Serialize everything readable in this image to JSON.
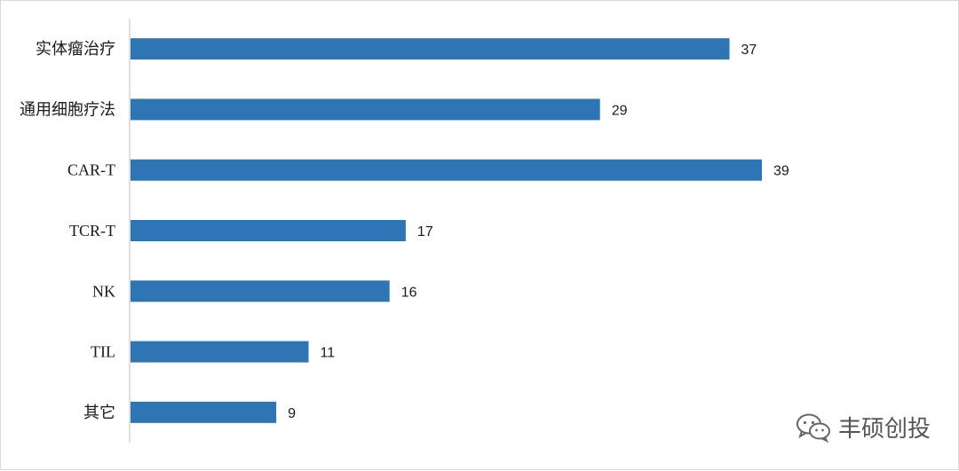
{
  "chart_data": {
    "type": "bar",
    "orientation": "horizontal",
    "categories": [
      "实体瘤治疗",
      "通用细胞疗法",
      "CAR-T",
      "TCR-T",
      "NK",
      "TIL",
      "其它"
    ],
    "values": [
      37,
      29,
      39,
      17,
      16,
      11,
      9
    ],
    "xlim": [
      0,
      40
    ],
    "grid": false,
    "data_labels": true,
    "colors": {
      "bar": "#2e75b6",
      "axis": "#bfbfbf"
    }
  },
  "watermark": {
    "text": "丰硕创投",
    "icon": "wechat-logo-icon"
  }
}
